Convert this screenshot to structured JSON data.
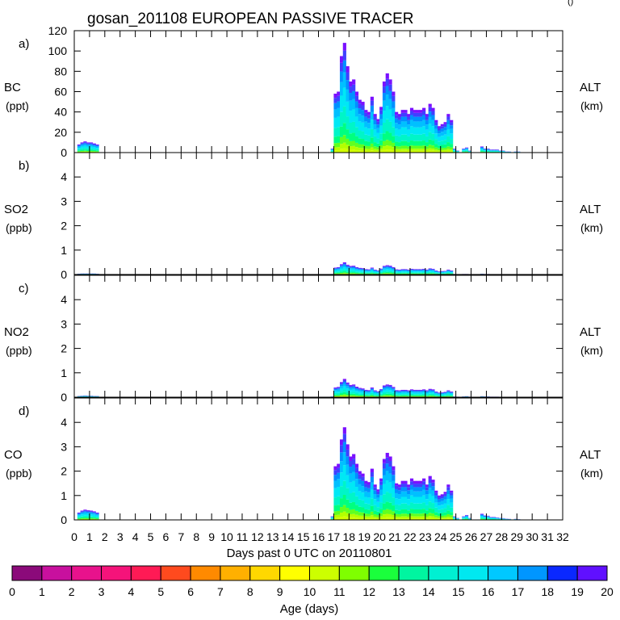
{
  "chart_data": {
    "type": "area",
    "title": "gosan_201108 EUROPEAN PASSIVE TRACER",
    "corner_mark": "()",
    "xlabel": "Days past 0 UTC on 20110801",
    "xlim": [
      0,
      32
    ],
    "x_tick_labels": [
      "0",
      "1",
      "2",
      "3",
      "4",
      "5",
      "6",
      "7",
      "8",
      "9",
      "10",
      "11",
      "12",
      "13",
      "14",
      "15",
      "16",
      "17",
      "18",
      "19",
      "20",
      "21",
      "22",
      "23",
      "24",
      "25",
      "26",
      "27",
      "28",
      "29",
      "30",
      "31",
      "32"
    ],
    "right_axis_label": "ALT",
    "right_axis_unit": "(km)",
    "panels": [
      {
        "tag": "a)",
        "species": "BC",
        "unit": "(ppt)",
        "ylim": [
          0,
          120
        ],
        "yticks": [
          "0",
          "20",
          "40",
          "60",
          "80",
          "100",
          "120"
        ],
        "days": [
          0.3,
          0.5,
          0.7,
          0.9,
          1.1,
          1.3,
          1.5,
          1.7,
          16.9,
          17.1,
          17.3,
          17.5,
          17.7,
          17.9,
          18.1,
          18.3,
          18.5,
          18.7,
          18.9,
          19.1,
          19.3,
          19.5,
          19.7,
          19.9,
          20.1,
          20.3,
          20.5,
          20.7,
          20.9,
          21.1,
          21.3,
          21.5,
          21.7,
          21.9,
          22.1,
          22.3,
          22.5,
          22.7,
          22.9,
          23.1,
          23.3,
          23.5,
          23.7,
          23.9,
          24.1,
          24.3,
          24.5,
          24.7,
          24.9,
          25.1,
          25.3,
          25.5,
          25.7,
          25.9,
          26.1,
          26.3,
          26.5,
          26.7,
          26.9,
          27.1,
          27.3,
          27.5,
          27.7,
          27.9,
          28.1,
          28.3,
          28.5,
          28.7,
          28.9,
          29.1,
          29.3
        ],
        "values": [
          8,
          10,
          11,
          10,
          10,
          9,
          8,
          0,
          4,
          58,
          60,
          95,
          108,
          85,
          70,
          72,
          60,
          52,
          50,
          42,
          40,
          55,
          38,
          33,
          45,
          70,
          78,
          72,
          60,
          40,
          38,
          42,
          42,
          38,
          44,
          42,
          42,
          42,
          44,
          38,
          48,
          44,
          32,
          26,
          28,
          30,
          38,
          32,
          4,
          2,
          0,
          4,
          5,
          2,
          0,
          0,
          0,
          6,
          4,
          4,
          3,
          3,
          3,
          2,
          2,
          1,
          1,
          0,
          1,
          1,
          0
        ]
      },
      {
        "tag": "b)",
        "species": "SO2",
        "unit": "(ppb)",
        "ylim": [
          0,
          5
        ],
        "yticks": [
          "0",
          "1",
          "2",
          "3",
          "4"
        ],
        "days": [
          0.3,
          0.5,
          0.7,
          0.9,
          1.1,
          1.3,
          1.5,
          1.7,
          16.9,
          17.1,
          17.3,
          17.5,
          17.7,
          17.9,
          18.1,
          18.3,
          18.5,
          18.7,
          18.9,
          19.1,
          19.3,
          19.5,
          19.7,
          19.9,
          20.1,
          20.3,
          20.5,
          20.7,
          20.9,
          21.1,
          21.3,
          21.5,
          21.7,
          21.9,
          22.1,
          22.3,
          22.5,
          22.7,
          22.9,
          23.1,
          23.3,
          23.5,
          23.7,
          23.9,
          24.1,
          24.3,
          24.5,
          24.7,
          24.9,
          25.1,
          25.3,
          25.5,
          25.7,
          25.9,
          26.1,
          26.3,
          26.5,
          26.7,
          26.9,
          27.1,
          27.3,
          27.5,
          27.7,
          27.9,
          28.1,
          28.3,
          28.5,
          28.7,
          28.9,
          29.1,
          29.3
        ],
        "values": [
          0.03,
          0.04,
          0.04,
          0.04,
          0.04,
          0.04,
          0.03,
          0,
          0.02,
          0.28,
          0.3,
          0.42,
          0.5,
          0.4,
          0.35,
          0.36,
          0.3,
          0.27,
          0.26,
          0.22,
          0.21,
          0.28,
          0.2,
          0.17,
          0.24,
          0.35,
          0.38,
          0.36,
          0.3,
          0.21,
          0.2,
          0.22,
          0.22,
          0.2,
          0.23,
          0.22,
          0.22,
          0.22,
          0.23,
          0.2,
          0.25,
          0.23,
          0.16,
          0.13,
          0.14,
          0.15,
          0.2,
          0.16,
          0.02,
          0.01,
          0,
          0.02,
          0.02,
          0.01,
          0,
          0,
          0,
          0.03,
          0.02,
          0.02,
          0.01,
          0.01,
          0.01,
          0.01,
          0.01,
          0,
          0,
          0,
          0,
          0,
          0
        ]
      },
      {
        "tag": "c)",
        "species": "NO2",
        "unit": "(ppb)",
        "ylim": [
          0,
          5
        ],
        "yticks": [
          "0",
          "1",
          "2",
          "3",
          "4"
        ],
        "days": [
          0.3,
          0.5,
          0.7,
          0.9,
          1.1,
          1.3,
          1.5,
          1.7,
          16.9,
          17.1,
          17.3,
          17.5,
          17.7,
          17.9,
          18.1,
          18.3,
          18.5,
          18.7,
          18.9,
          19.1,
          19.3,
          19.5,
          19.7,
          19.9,
          20.1,
          20.3,
          20.5,
          20.7,
          20.9,
          21.1,
          21.3,
          21.5,
          21.7,
          21.9,
          22.1,
          22.3,
          22.5,
          22.7,
          22.9,
          23.1,
          23.3,
          23.5,
          23.7,
          23.9,
          24.1,
          24.3,
          24.5,
          24.7,
          24.9,
          25.1,
          25.3,
          25.5,
          25.7,
          25.9,
          26.1,
          26.3,
          26.5,
          26.7,
          26.9,
          27.1,
          27.3,
          27.5,
          27.7,
          27.9,
          28.1,
          28.3,
          28.5,
          28.7,
          28.9,
          29.1,
          29.3
        ],
        "values": [
          0.05,
          0.06,
          0.07,
          0.06,
          0.06,
          0.05,
          0.05,
          0,
          0.03,
          0.4,
          0.42,
          0.62,
          0.75,
          0.6,
          0.5,
          0.52,
          0.43,
          0.38,
          0.36,
          0.3,
          0.29,
          0.4,
          0.28,
          0.24,
          0.33,
          0.48,
          0.52,
          0.5,
          0.42,
          0.29,
          0.28,
          0.3,
          0.3,
          0.28,
          0.32,
          0.3,
          0.3,
          0.3,
          0.32,
          0.28,
          0.34,
          0.32,
          0.23,
          0.19,
          0.2,
          0.22,
          0.28,
          0.23,
          0.03,
          0.02,
          0,
          0.03,
          0.04,
          0.02,
          0,
          0,
          0,
          0.04,
          0.03,
          0.03,
          0.02,
          0.02,
          0.02,
          0.01,
          0.01,
          0.01,
          0.01,
          0,
          0.01,
          0,
          0
        ]
      },
      {
        "tag": "d)",
        "species": "CO",
        "unit": "(ppb)",
        "ylim": [
          0,
          5
        ],
        "yticks": [
          "0",
          "1",
          "2",
          "3",
          "4"
        ],
        "days": [
          0.3,
          0.5,
          0.7,
          0.9,
          1.1,
          1.3,
          1.5,
          1.7,
          16.9,
          17.1,
          17.3,
          17.5,
          17.7,
          17.9,
          18.1,
          18.3,
          18.5,
          18.7,
          18.9,
          19.1,
          19.3,
          19.5,
          19.7,
          19.9,
          20.1,
          20.3,
          20.5,
          20.7,
          20.9,
          21.1,
          21.3,
          21.5,
          21.7,
          21.9,
          22.1,
          22.3,
          22.5,
          22.7,
          22.9,
          23.1,
          23.3,
          23.5,
          23.7,
          23.9,
          24.1,
          24.3,
          24.5,
          24.7,
          24.9,
          25.1,
          25.3,
          25.5,
          25.7,
          25.9,
          26.1,
          26.3,
          26.5,
          26.7,
          26.9,
          27.1,
          27.3,
          27.5,
          27.7,
          27.9,
          28.1,
          28.3,
          28.5,
          28.7,
          28.9,
          29.1,
          29.3
        ],
        "values": [
          0.3,
          0.38,
          0.42,
          0.4,
          0.38,
          0.35,
          0.3,
          0,
          0.15,
          2.2,
          2.3,
          3.3,
          3.8,
          3.1,
          2.6,
          2.7,
          2.3,
          2.0,
          1.9,
          1.6,
          1.55,
          2.1,
          1.45,
          1.25,
          1.7,
          2.5,
          2.75,
          2.6,
          2.2,
          1.5,
          1.45,
          1.6,
          1.6,
          1.45,
          1.7,
          1.6,
          1.6,
          1.6,
          1.7,
          1.45,
          1.8,
          1.65,
          1.2,
          1.0,
          1.05,
          1.15,
          1.45,
          1.2,
          0.15,
          0.08,
          0,
          0.15,
          0.2,
          0.08,
          0,
          0,
          0,
          0.25,
          0.18,
          0.17,
          0.12,
          0.12,
          0.1,
          0.08,
          0.07,
          0.05,
          0.04,
          0,
          0.04,
          0.03,
          0
        ]
      }
    ],
    "colorbar": {
      "label": "Age (days)",
      "tick_labels": [
        "0",
        "1",
        "2",
        "3",
        "4",
        "5",
        "6",
        "7",
        "8",
        "9",
        "10",
        "11",
        "12",
        "13",
        "14",
        "15",
        "16",
        "17",
        "18",
        "19",
        "20"
      ],
      "colors": [
        "#8b0a7a",
        "#c8109e",
        "#e8128c",
        "#f5137a",
        "#ff1a55",
        "#ff4a1e",
        "#ff8a00",
        "#ffb000",
        "#ffd800",
        "#ffff00",
        "#ccff00",
        "#7fff00",
        "#1aff3c",
        "#00f5a0",
        "#00f0d2",
        "#00e8f0",
        "#00c8ff",
        "#0096ff",
        "#0a28ff",
        "#6010ff"
      ],
      "stack_palette": [
        "#d2ff00",
        "#b4ff00",
        "#60ff20",
        "#00ff80",
        "#00f5c8",
        "#00e8f5",
        "#00c0ff",
        "#0090ff",
        "#4040ff",
        "#7a10ff"
      ]
    }
  }
}
